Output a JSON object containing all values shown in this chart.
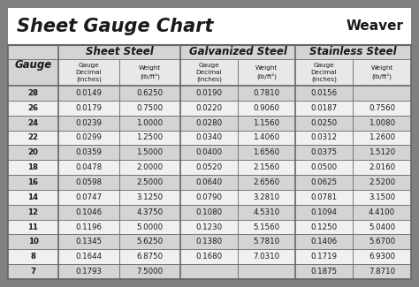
{
  "title": "Sheet Gauge Chart",
  "weaver_text": "Weaver",
  "bg_outer": "#808080",
  "bg_inner": "#ffffff",
  "header_section_bg": "#d4d4d4",
  "row_bg_dark": "#d4d4d4",
  "row_bg_light": "#f0f0f0",
  "border_color": "#666666",
  "text_color": "#1a1a1a",
  "gauges": [
    "28",
    "26",
    "24",
    "22",
    "20",
    "18",
    "16",
    "14",
    "12",
    "11",
    "10",
    "8",
    "7"
  ],
  "sheet_steel": [
    [
      "0.0149",
      "0.6250"
    ],
    [
      "0.0179",
      "0.7500"
    ],
    [
      "0.0239",
      "1.0000"
    ],
    [
      "0.0299",
      "1.2500"
    ],
    [
      "0.0359",
      "1.5000"
    ],
    [
      "0.0478",
      "2.0000"
    ],
    [
      "0.0598",
      "2.5000"
    ],
    [
      "0.0747",
      "3.1250"
    ],
    [
      "0.1046",
      "4.3750"
    ],
    [
      "0.1196",
      "5.0000"
    ],
    [
      "0.1345",
      "5.6250"
    ],
    [
      "0.1644",
      "6.8750"
    ],
    [
      "0.1793",
      "7.5000"
    ]
  ],
  "galvanized_steel": [
    [
      "0.0190",
      "0.7810"
    ],
    [
      "0.0220",
      "0.9060"
    ],
    [
      "0.0280",
      "1.1560"
    ],
    [
      "0.0340",
      "1.4060"
    ],
    [
      "0.0400",
      "1.6560"
    ],
    [
      "0.0520",
      "2.1560"
    ],
    [
      "0.0640",
      "2.6560"
    ],
    [
      "0.0790",
      "3.2810"
    ],
    [
      "0.1080",
      "4.5310"
    ],
    [
      "0.1230",
      "5.1560"
    ],
    [
      "0.1380",
      "5.7810"
    ],
    [
      "0.1680",
      "7.0310"
    ],
    [
      "",
      ""
    ]
  ],
  "stainless_steel": [
    [
      "0.0156",
      ""
    ],
    [
      "0.0187",
      "0.7560"
    ],
    [
      "0.0250",
      "1.0080"
    ],
    [
      "0.0312",
      "1.2600"
    ],
    [
      "0.0375",
      "1.5120"
    ],
    [
      "0.0500",
      "2.0160"
    ],
    [
      "0.0625",
      "2.5200"
    ],
    [
      "0.0781",
      "3.1500"
    ],
    [
      "0.1094",
      "4.4100"
    ],
    [
      "0.1250",
      "5.0400"
    ],
    [
      "0.1406",
      "5.6700"
    ],
    [
      "0.1719",
      "6.9300"
    ],
    [
      "0.1875",
      "7.8710"
    ]
  ],
  "fig_w": 4.74,
  "fig_h": 3.25,
  "dpi": 100
}
